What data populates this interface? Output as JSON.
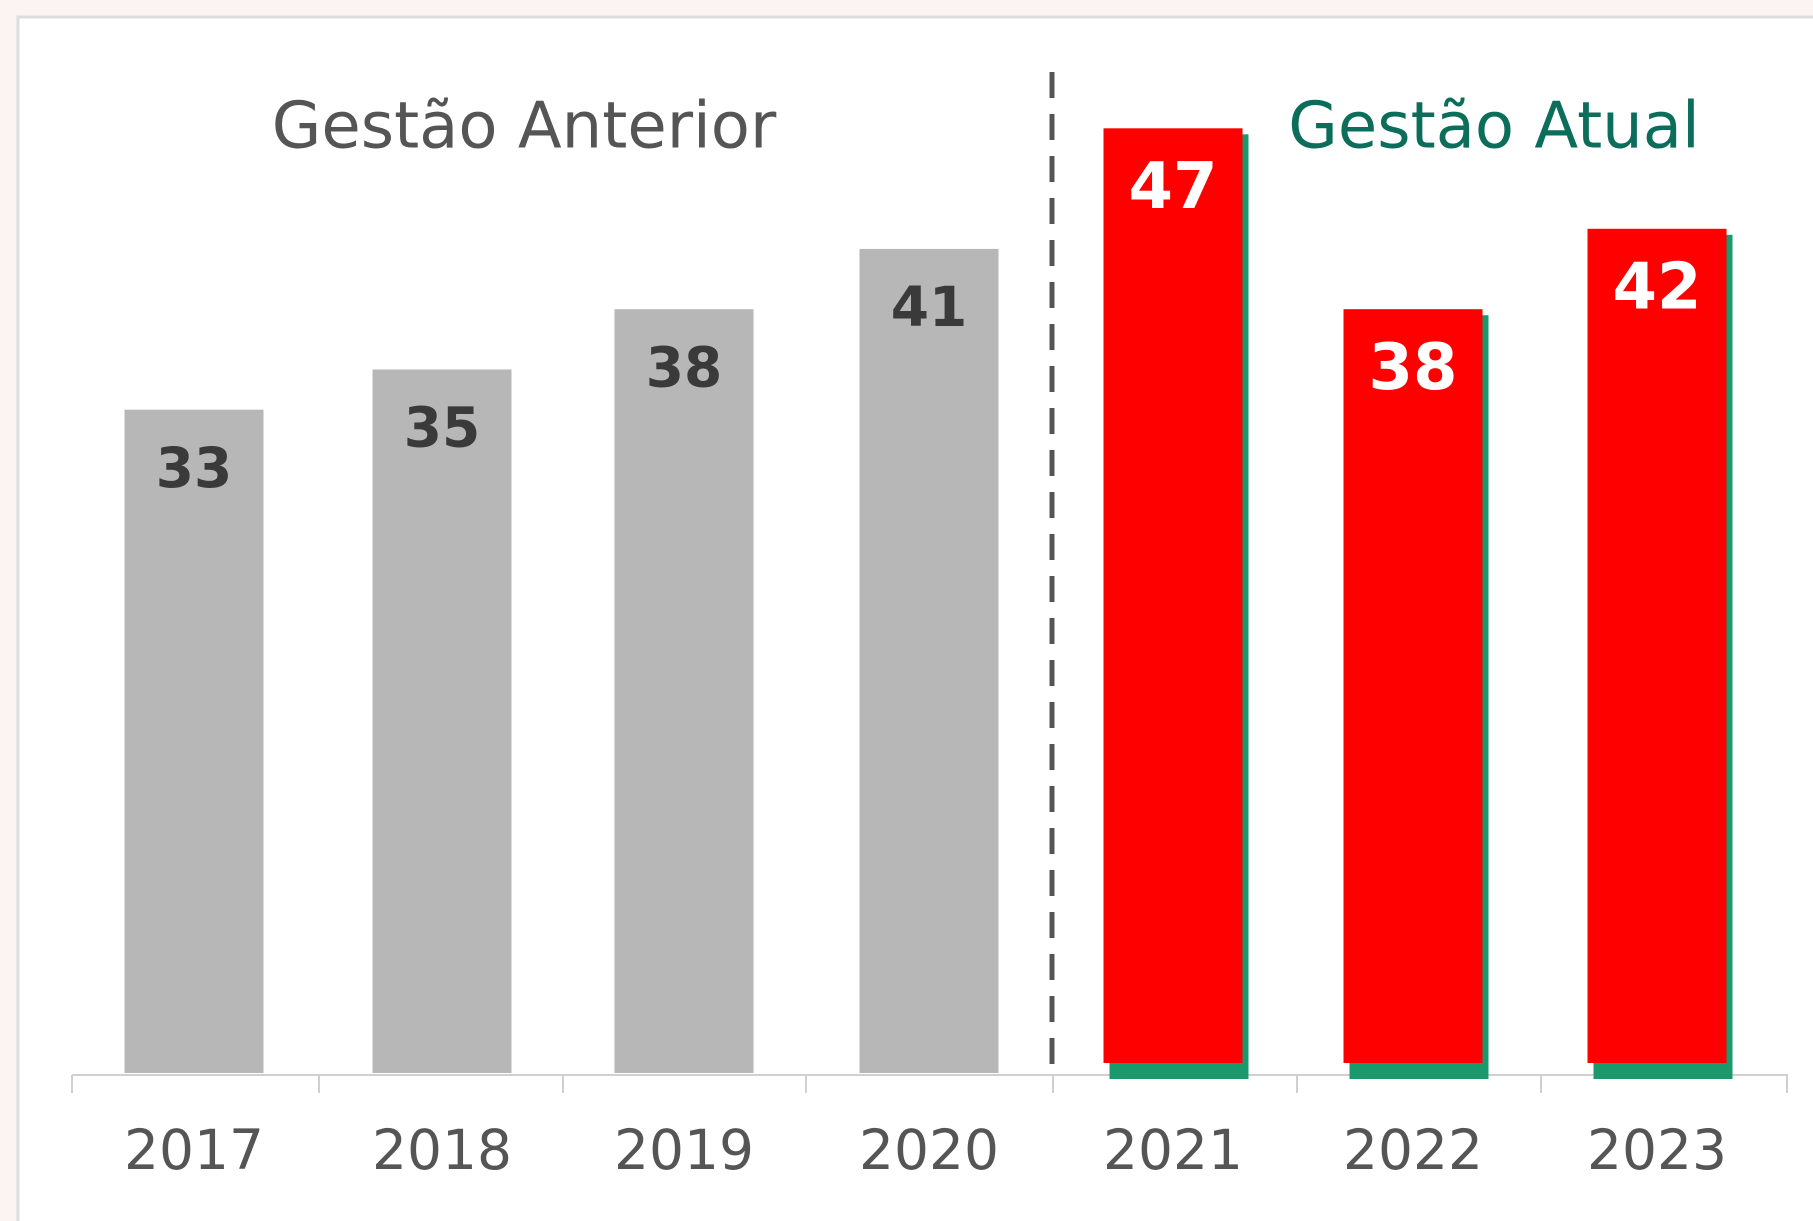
{
  "chart_data": {
    "type": "bar",
    "categories": [
      "2017",
      "2018",
      "2019",
      "2020",
      "2021",
      "2022",
      "2023"
    ],
    "values": [
      33,
      35,
      38,
      41,
      47,
      38,
      42
    ],
    "colors": [
      "#b7b7b7",
      "#b7b7b7",
      "#b7b7b7",
      "#b7b7b7",
      "#ff0000",
      "#ff0000",
      "#ff0000"
    ],
    "annotations": [
      "Gestão Anterior",
      "Gestão Atual"
    ]
  }
}
